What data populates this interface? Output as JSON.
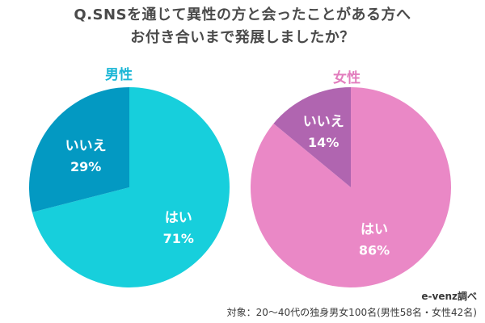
{
  "title": {
    "line1": "Q.SNSを通じて異性の方と会ったことがある方へ",
    "line2": "お付き合いまで発展しましたか？"
  },
  "footer": {
    "credit": "e-venz調べ",
    "note": "対象：20〜40代の独身男女100名(男性58名・女性42名)"
  },
  "chart_data": [
    {
      "type": "pie",
      "title": "男性",
      "slices": [
        {
          "label": "はい",
          "value": 71,
          "display": "71%",
          "color": "#17cfdc"
        },
        {
          "label": "いいえ",
          "value": 29,
          "display": "29%",
          "color": "#0399c2"
        }
      ]
    },
    {
      "type": "pie",
      "title": "女性",
      "slices": [
        {
          "label": "はい",
          "value": 86,
          "display": "86%",
          "color": "#ea88c6"
        },
        {
          "label": "いいえ",
          "value": 14,
          "display": "14%",
          "color": "#b065b0"
        }
      ]
    }
  ]
}
